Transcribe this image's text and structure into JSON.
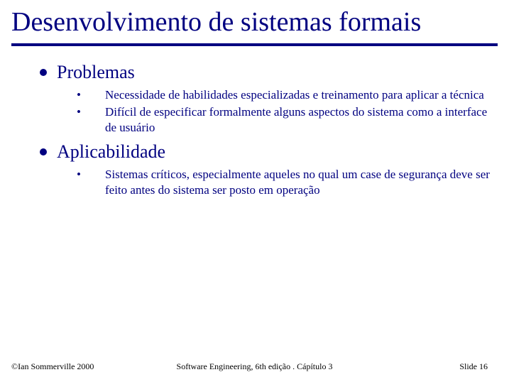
{
  "colors": {
    "text": "#000080",
    "rule": "#000080",
    "background": "#ffffff",
    "footer_text": "#000000"
  },
  "typography": {
    "title_fontsize": 38,
    "section_fontsize": 26,
    "body_fontsize": 17,
    "footer_fontsize": 12,
    "font_family": "Times New Roman"
  },
  "title": "Desenvolvimento de sistemas formais",
  "sections": [
    {
      "heading": "Problemas",
      "items": [
        "Necessidade de habilidades especializadas e treinamento para aplicar a técnica",
        "Difícil de especificar formalmente alguns aspectos do sistema como a interface de usuário"
      ]
    },
    {
      "heading": "Aplicabilidade",
      "items": [
        "Sistemas críticos, especialmente aqueles no qual um case de segurança deve ser feito antes do sistema ser posto em operação"
      ]
    }
  ],
  "footer": {
    "left": "©Ian Sommerville 2000",
    "center": "Software Engineering, 6th edição . Cápítulo 3",
    "right": "Slide 16"
  }
}
